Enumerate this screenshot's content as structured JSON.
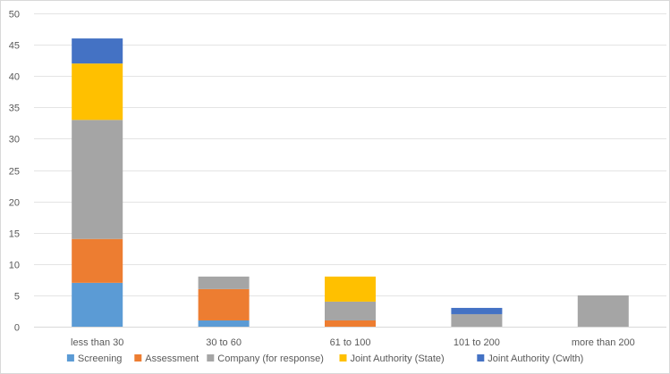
{
  "chart_data": {
    "type": "bar",
    "stacked": true,
    "title": "",
    "xlabel": "",
    "ylabel": "",
    "categories": [
      "less than 30",
      "30 to 60",
      "61 to 100",
      "101 to 200",
      "more than 200"
    ],
    "ylim": [
      0,
      50
    ],
    "yticks": [
      0,
      5,
      10,
      15,
      20,
      25,
      30,
      35,
      40,
      45,
      50
    ],
    "grid": true,
    "legend_position": "bottom",
    "series": [
      {
        "name": "Screening",
        "color": "#5B9BD5",
        "values": [
          7,
          1,
          0,
          0,
          0
        ]
      },
      {
        "name": "Assessment",
        "color": "#ED7D31",
        "values": [
          7,
          5,
          1,
          0,
          0
        ]
      },
      {
        "name": "Company (for response)",
        "color": "#A5A5A5",
        "values": [
          19,
          2,
          3,
          2,
          5
        ]
      },
      {
        "name": "Joint Authority (State)",
        "color": "#FFC000",
        "values": [
          9,
          0,
          4,
          0,
          0
        ]
      },
      {
        "name": "Joint Authority (Cwlth)",
        "color": "#4472C4",
        "values": [
          4,
          0,
          0,
          1,
          0
        ]
      }
    ]
  }
}
